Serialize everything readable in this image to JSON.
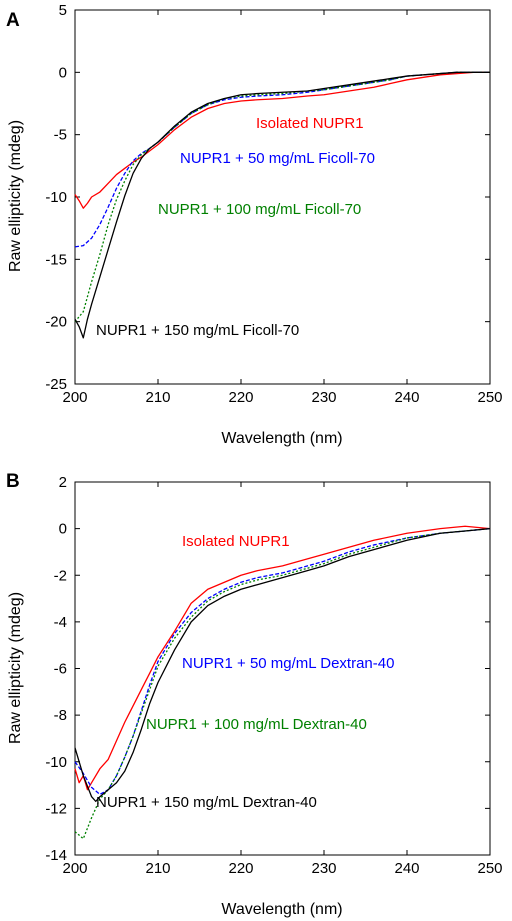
{
  "chart_data": [
    {
      "panel": "A",
      "type": "line",
      "xlabel": "Wavelength (nm)",
      "ylabel": "Raw ellipticity (mdeg)",
      "xlim": [
        200,
        250
      ],
      "ylim": [
        -25,
        5
      ],
      "xticks": [
        200,
        210,
        220,
        230,
        240,
        250
      ],
      "yticks": [
        -25,
        -20,
        -15,
        -10,
        -5,
        0,
        5
      ],
      "grid": false,
      "series": [
        {
          "name": "Isolated NUPR1",
          "color": "#ff0000",
          "dash": "solid",
          "x": [
            200,
            200.5,
            201,
            201.5,
            202,
            203,
            204,
            205,
            206,
            207,
            208,
            209,
            210,
            212,
            214,
            216,
            218,
            220,
            222,
            225,
            228,
            230,
            233,
            236,
            238,
            240,
            242,
            244,
            246,
            248,
            250
          ],
          "y": [
            -9.8,
            -10.3,
            -10.9,
            -10.5,
            -10.0,
            -9.6,
            -8.9,
            -8.2,
            -7.7,
            -7.2,
            -6.8,
            -6.3,
            -5.8,
            -4.6,
            -3.6,
            -2.9,
            -2.5,
            -2.3,
            -2.2,
            -2.1,
            -1.9,
            -1.8,
            -1.5,
            -1.2,
            -0.9,
            -0.6,
            -0.4,
            -0.2,
            -0.1,
            0.0,
            0.0
          ]
        },
        {
          "name": "NUPR1 + 50 mg/mL Ficoll-70",
          "color": "#0000ff",
          "dash": "4,2",
          "x": [
            200,
            201,
            202,
            203,
            204,
            205,
            206,
            207,
            208,
            209,
            210,
            212,
            214,
            216,
            218,
            220,
            222,
            225,
            228,
            230,
            233,
            236,
            238,
            240,
            242,
            244,
            246,
            248,
            250
          ],
          "y": [
            -14.0,
            -13.9,
            -13.3,
            -12.2,
            -10.8,
            -9.3,
            -8.1,
            -7.1,
            -6.5,
            -6.1,
            -5.6,
            -4.4,
            -3.3,
            -2.6,
            -2.2,
            -2.0,
            -1.9,
            -1.8,
            -1.6,
            -1.4,
            -1.1,
            -0.8,
            -0.6,
            -0.3,
            -0.2,
            -0.1,
            0.0,
            0.0,
            0.0
          ]
        },
        {
          "name": "NUPR1 + 100 mg/mL Ficoll-70",
          "color": "#008000",
          "dash": "2,2",
          "x": [
            200,
            201,
            202,
            203,
            204,
            205,
            206,
            207,
            208,
            209,
            210,
            212,
            214,
            216,
            218,
            220,
            222,
            225,
            228,
            230,
            233,
            236,
            238,
            240,
            242,
            244,
            246,
            248,
            250
          ],
          "y": [
            -20.0,
            -19.2,
            -16.8,
            -14.6,
            -12.2,
            -10.2,
            -8.7,
            -7.4,
            -6.6,
            -6.1,
            -5.6,
            -4.4,
            -3.3,
            -2.6,
            -2.1,
            -1.9,
            -1.8,
            -1.7,
            -1.5,
            -1.4,
            -1.1,
            -0.8,
            -0.6,
            -0.3,
            -0.2,
            -0.1,
            0.0,
            0.0,
            0.0
          ]
        },
        {
          "name": "NUPR1 + 150 mg/mL Ficoll-70",
          "color": "#000000",
          "dash": "solid",
          "x": [
            200,
            200.5,
            201,
            201.5,
            202,
            203,
            204,
            205,
            206,
            207,
            208,
            209,
            210,
            212,
            214,
            216,
            218,
            220,
            222,
            225,
            228,
            230,
            233,
            236,
            238,
            240,
            242,
            244,
            246,
            248,
            250
          ],
          "y": [
            -19.8,
            -20.4,
            -21.3,
            -19.8,
            -18.6,
            -16.4,
            -14.2,
            -12.0,
            -9.9,
            -8.1,
            -6.9,
            -6.1,
            -5.6,
            -4.3,
            -3.2,
            -2.5,
            -2.1,
            -1.8,
            -1.7,
            -1.6,
            -1.5,
            -1.3,
            -1.0,
            -0.7,
            -0.5,
            -0.3,
            -0.2,
            -0.1,
            0.0,
            0.0,
            0.0
          ]
        }
      ]
    },
    {
      "panel": "B",
      "type": "line",
      "xlabel": "Wavelength (nm)",
      "ylabel": "Raw ellipticity (mdeg)",
      "xlim": [
        200,
        250
      ],
      "ylim": [
        -14,
        2
      ],
      "xticks": [
        200,
        210,
        220,
        230,
        240,
        250
      ],
      "yticks": [
        -14,
        -12,
        -10,
        -8,
        -6,
        -4,
        -2,
        0,
        2
      ],
      "grid": false,
      "series": [
        {
          "name": "Isolated NUPR1",
          "color": "#ff0000",
          "dash": "solid",
          "x": [
            200,
            200.5,
            201,
            201.5,
            202,
            203,
            204,
            205,
            206,
            207,
            208,
            209,
            210,
            212,
            214,
            216,
            218,
            220,
            222,
            225,
            228,
            230,
            233,
            236,
            240,
            244,
            247,
            250
          ],
          "y": [
            -10.3,
            -10.9,
            -10.6,
            -11.2,
            -10.9,
            -10.3,
            -9.9,
            -9.1,
            -8.3,
            -7.6,
            -6.9,
            -6.2,
            -5.5,
            -4.4,
            -3.2,
            -2.6,
            -2.3,
            -2.0,
            -1.8,
            -1.6,
            -1.3,
            -1.1,
            -0.8,
            -0.5,
            -0.2,
            0.0,
            0.1,
            0.0
          ]
        },
        {
          "name": "NUPR1 + 50 mg/mL Dextran-40",
          "color": "#0000ff",
          "dash": "4,2",
          "x": [
            200,
            201,
            202,
            203,
            204,
            205,
            206,
            207,
            208,
            209,
            210,
            212,
            214,
            216,
            218,
            220,
            222,
            225,
            228,
            230,
            233,
            236,
            240,
            244,
            247,
            250
          ],
          "y": [
            -10.0,
            -10.5,
            -11.1,
            -11.4,
            -11.2,
            -10.6,
            -9.8,
            -8.9,
            -7.8,
            -6.7,
            -5.7,
            -4.5,
            -3.6,
            -3.0,
            -2.6,
            -2.3,
            -2.1,
            -1.9,
            -1.6,
            -1.4,
            -1.0,
            -0.7,
            -0.4,
            -0.2,
            -0.1,
            0.0
          ]
        },
        {
          "name": "NUPR1 + 100 mg/mL Dextran-40",
          "color": "#008000",
          "dash": "2,2",
          "x": [
            200,
            201,
            202,
            203,
            204,
            205,
            206,
            207,
            208,
            209,
            210,
            212,
            214,
            216,
            218,
            220,
            222,
            225,
            228,
            230,
            233,
            236,
            240,
            244,
            247,
            250
          ],
          "y": [
            -13.0,
            -13.3,
            -12.4,
            -11.6,
            -11.2,
            -10.6,
            -9.8,
            -8.9,
            -7.9,
            -6.9,
            -5.9,
            -4.7,
            -3.8,
            -3.1,
            -2.7,
            -2.4,
            -2.2,
            -2.0,
            -1.7,
            -1.5,
            -1.1,
            -0.8,
            -0.4,
            -0.2,
            -0.1,
            0.0
          ]
        },
        {
          "name": "NUPR1 + 150 mg/mL Dextran-40",
          "color": "#000000",
          "dash": "solid",
          "x": [
            200,
            201,
            202,
            202.5,
            203,
            204,
            205,
            206,
            207,
            208,
            209,
            210,
            212,
            214,
            216,
            218,
            220,
            222,
            225,
            228,
            230,
            233,
            236,
            240,
            244,
            247,
            250
          ],
          "y": [
            -9.4,
            -10.6,
            -11.5,
            -11.7,
            -11.5,
            -11.2,
            -10.9,
            -10.4,
            -9.6,
            -8.6,
            -7.5,
            -6.6,
            -5.2,
            -4.0,
            -3.3,
            -2.9,
            -2.6,
            -2.4,
            -2.1,
            -1.8,
            -1.6,
            -1.2,
            -0.9,
            -0.5,
            -0.2,
            -0.1,
            0.0
          ]
        }
      ]
    }
  ]
}
